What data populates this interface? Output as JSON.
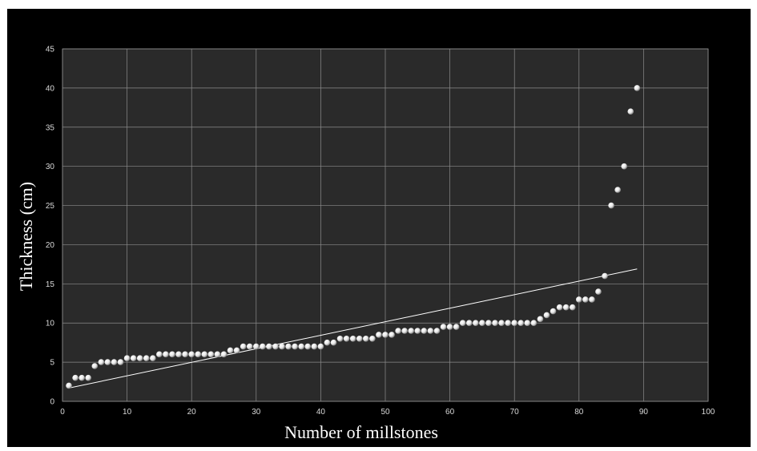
{
  "chart_data": {
    "type": "scatter",
    "title": "",
    "xlabel": "Number of millstones",
    "ylabel": "Thickness (cm)",
    "xlim": [
      0,
      100
    ],
    "ylim": [
      0,
      45
    ],
    "xticks": [
      0,
      10,
      20,
      30,
      40,
      50,
      60,
      70,
      80,
      90,
      100
    ],
    "yticks": [
      0,
      5,
      10,
      15,
      20,
      25,
      30,
      35,
      40,
      45
    ],
    "grid": true,
    "legend": "none",
    "colors": {
      "background": "#000000",
      "plot_area": "#2a2a2a",
      "grid": "#8c8c8c",
      "text": "#ffffff",
      "trendline": "#ffffff",
      "marker": "#f2f2f2"
    },
    "series": [
      {
        "values": [
          [
            1,
            2
          ],
          [
            2,
            3
          ],
          [
            3,
            3
          ],
          [
            4,
            3
          ],
          [
            5,
            4.5
          ],
          [
            6,
            5
          ],
          [
            7,
            5
          ],
          [
            8,
            5
          ],
          [
            9,
            5
          ],
          [
            10,
            5.5
          ],
          [
            11,
            5.5
          ],
          [
            12,
            5.5
          ],
          [
            13,
            5.5
          ],
          [
            14,
            5.5
          ],
          [
            15,
            6
          ],
          [
            16,
            6
          ],
          [
            17,
            6
          ],
          [
            18,
            6
          ],
          [
            19,
            6
          ],
          [
            20,
            6
          ],
          [
            21,
            6
          ],
          [
            22,
            6
          ],
          [
            23,
            6
          ],
          [
            24,
            6
          ],
          [
            25,
            6
          ],
          [
            26,
            6.5
          ],
          [
            27,
            6.5
          ],
          [
            28,
            7
          ],
          [
            29,
            7
          ],
          [
            30,
            7
          ],
          [
            31,
            7
          ],
          [
            32,
            7
          ],
          [
            33,
            7
          ],
          [
            34,
            7
          ],
          [
            35,
            7
          ],
          [
            36,
            7
          ],
          [
            37,
            7
          ],
          [
            38,
            7
          ],
          [
            39,
            7
          ],
          [
            40,
            7
          ],
          [
            41,
            7.5
          ],
          [
            42,
            7.5
          ],
          [
            43,
            8
          ],
          [
            44,
            8
          ],
          [
            45,
            8
          ],
          [
            46,
            8
          ],
          [
            47,
            8
          ],
          [
            48,
            8
          ],
          [
            49,
            8.5
          ],
          [
            50,
            8.5
          ],
          [
            51,
            8.5
          ],
          [
            52,
            9
          ],
          [
            53,
            9
          ],
          [
            54,
            9
          ],
          [
            55,
            9
          ],
          [
            56,
            9
          ],
          [
            57,
            9
          ],
          [
            58,
            9
          ],
          [
            59,
            9.5
          ],
          [
            60,
            9.5
          ],
          [
            61,
            9.5
          ],
          [
            62,
            10
          ],
          [
            63,
            10
          ],
          [
            64,
            10
          ],
          [
            65,
            10
          ],
          [
            66,
            10
          ],
          [
            67,
            10
          ],
          [
            68,
            10
          ],
          [
            69,
            10
          ],
          [
            70,
            10
          ],
          [
            71,
            10
          ],
          [
            72,
            10
          ],
          [
            73,
            10
          ],
          [
            74,
            10.5
          ],
          [
            75,
            11
          ],
          [
            76,
            11.5
          ],
          [
            77,
            12
          ],
          [
            78,
            12
          ],
          [
            79,
            12
          ],
          [
            80,
            13
          ],
          [
            81,
            13
          ],
          [
            82,
            13
          ],
          [
            83,
            14
          ],
          [
            84,
            16
          ],
          [
            85,
            25
          ],
          [
            86,
            27
          ],
          [
            87,
            30
          ],
          [
            88,
            37
          ],
          [
            89,
            40
          ]
        ]
      }
    ],
    "trendline": {
      "x": [
        1,
        89
      ],
      "y": [
        1.7,
        16.9
      ]
    }
  }
}
